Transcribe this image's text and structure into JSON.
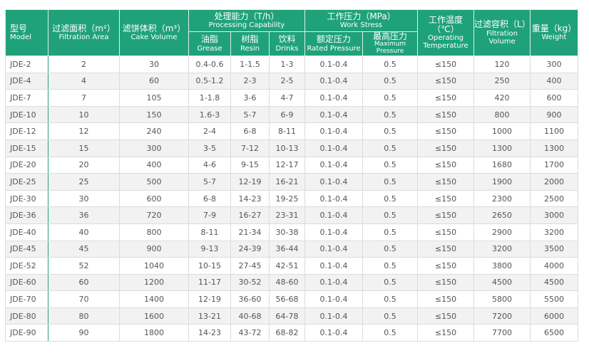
{
  "colors": {
    "header": "#1fa27a",
    "alt_row": "#f2f2f2"
  },
  "headers": {
    "model": {
      "cn": "型号",
      "en": "Model"
    },
    "area": {
      "cn": "过滤面积（m²）",
      "en": "Filtration Area"
    },
    "cake": {
      "cn": "滤饼体积（m³）",
      "en": "Cake Volume"
    },
    "capability": {
      "cn": "处理能力（T/h）",
      "en": "Processing Capability"
    },
    "grease": {
      "cn": "油脂",
      "en": "Grease"
    },
    "resin": {
      "cn": "树脂",
      "en": "Resin"
    },
    "drinks": {
      "cn": "饮料",
      "en": "Drinks"
    },
    "stress": {
      "cn": "工作压力（MPa）",
      "en": "Work Stress"
    },
    "rated": {
      "cn": "额定压力",
      "en": "Rated Pressure"
    },
    "max": {
      "cn": "最高压力",
      "en": "Maximum Pressure"
    },
    "temp": {
      "cn": "工作温度（℃）",
      "en": "Operating Temperature"
    },
    "volume": {
      "cn": "过滤容积（L）",
      "en": "Filtration Volume"
    },
    "weight": {
      "cn": "重量（kg）",
      "en": "Weight"
    }
  },
  "rows": [
    [
      "JDE-2",
      "2",
      "30",
      "0.4-0.6",
      "1-1.5",
      "1-3",
      "0.1-0.4",
      "0.5",
      "≤150",
      "120",
      "300"
    ],
    [
      "JDE-4",
      "4",
      "60",
      "0.5-1.2",
      "2-3",
      "2-5",
      "0.1-0.4",
      "0.5",
      "≤150",
      "250",
      "400"
    ],
    [
      "JDE-7",
      "7",
      "105",
      "1-1.8",
      "3-6",
      "4-7",
      "0.1-0.4",
      "0.5",
      "≤150",
      "420",
      "600"
    ],
    [
      "JDE-10",
      "10",
      "150",
      "1.6-3",
      "5-7",
      "6-9",
      "0.1-0.4",
      "0.5",
      "≤150",
      "800",
      "900"
    ],
    [
      "JDE-12",
      "12",
      "240",
      "2-4",
      "6-8",
      "8-11",
      "0.1-0.4",
      "0.5",
      "≤150",
      "1000",
      "1100"
    ],
    [
      "JDE-15",
      "15",
      "300",
      "3-5",
      "7-12",
      "10-13",
      "0.1-0.4",
      "0.5",
      "≤150",
      "1300",
      "1300"
    ],
    [
      "JDE-20",
      "20",
      "400",
      "4-6",
      "9-15",
      "12-17",
      "0.1-0.4",
      "0.5",
      "≤150",
      "1680",
      "1700"
    ],
    [
      "JDE-25",
      "25",
      "500",
      "5-7",
      "12-19",
      "16-21",
      "0.1-0.4",
      "0.5",
      "≤150",
      "1900",
      "2000"
    ],
    [
      "JDE-30",
      "30",
      "600",
      "6-8",
      "14-23",
      "19-25",
      "0.1-0.4",
      "0.5",
      "≤150",
      "2300",
      "2500"
    ],
    [
      "JDE-36",
      "36",
      "720",
      "7-9",
      "16-27",
      "23-31",
      "0.1-0.4",
      "0.5",
      "≤150",
      "2650",
      "3000"
    ],
    [
      "JDE-40",
      "40",
      "800",
      "8-11",
      "21-34",
      "30-38",
      "0.1-0.4",
      "0.5",
      "≤150",
      "2900",
      "3200"
    ],
    [
      "JDE-45",
      "45",
      "900",
      "9-13",
      "24-39",
      "36-44",
      "0.1-0.4",
      "0.5",
      "≤150",
      "3200",
      "3500"
    ],
    [
      "JDE-52",
      "52",
      "1040",
      "10-15",
      "27-45",
      "42-51",
      "0.1-0.4",
      "0.5",
      "≤150",
      "3800",
      "4000"
    ],
    [
      "JDE-60",
      "60",
      "1200",
      "11-17",
      "30-52",
      "48-60",
      "0.1-0.4",
      "0.5",
      "≤150",
      "4500",
      "4500"
    ],
    [
      "JDE-70",
      "70",
      "1400",
      "12-19",
      "36-60",
      "56-68",
      "0.1-0.4",
      "0.5",
      "≤150",
      "5800",
      "5500"
    ],
    [
      "JDE-80",
      "80",
      "1600",
      "13-21",
      "40-68",
      "64-78",
      "0.1-0.4",
      "0.5",
      "≤150",
      "7200",
      "6000"
    ],
    [
      "JDE-90",
      "90",
      "1800",
      "14-23",
      "43-72",
      "68-82",
      "0.1-0.4",
      "0.5",
      "≤150",
      "7700",
      "6500"
    ]
  ]
}
